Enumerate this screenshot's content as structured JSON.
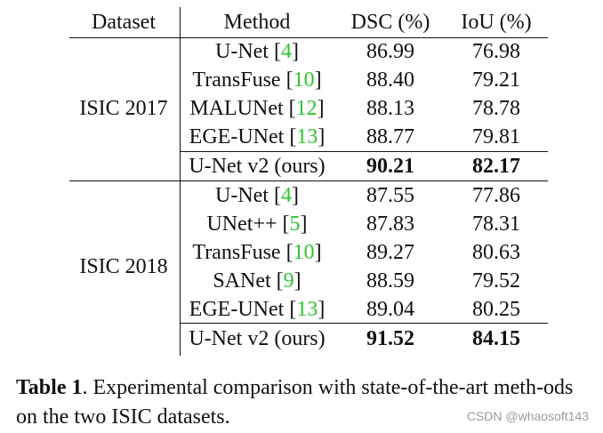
{
  "table": {
    "headers": {
      "dataset": "Dataset",
      "method": "Method",
      "dsc": "DSC (%)",
      "iou": "IoU (%)"
    },
    "groups": [
      {
        "dataset": "ISIC 2017",
        "rows": [
          {
            "method": "U-Net",
            "ref": "4",
            "dsc": "86.99",
            "iou": "76.98"
          },
          {
            "method": "TransFuse",
            "ref": "10",
            "dsc": "88.40",
            "iou": "79.21"
          },
          {
            "method": "MALUNet",
            "ref": "12",
            "dsc": "88.13",
            "iou": "78.78"
          },
          {
            "method": "EGE-UNet",
            "ref": "13",
            "dsc": "88.77",
            "iou": "79.81"
          }
        ],
        "ours": {
          "method": "U-Net v2 (ours)",
          "dsc": "90.21",
          "iou": "82.17"
        }
      },
      {
        "dataset": "ISIC 2018",
        "rows": [
          {
            "method": "U-Net",
            "ref": "4",
            "dsc": "87.55",
            "iou": "77.86"
          },
          {
            "method": "UNet++",
            "ref": "5",
            "dsc": "87.83",
            "iou": "78.31"
          },
          {
            "method": "TransFuse",
            "ref": "10",
            "dsc": "89.27",
            "iou": "80.63"
          },
          {
            "method": "SANet",
            "ref": "9",
            "dsc": "88.59",
            "iou": "79.52"
          },
          {
            "method": "EGE-UNet",
            "ref": "13",
            "dsc": "89.04",
            "iou": "80.25"
          }
        ],
        "ours": {
          "method": "U-Net v2 (ours)",
          "dsc": "91.52",
          "iou": "84.15"
        }
      }
    ]
  },
  "caption": {
    "label": "Table 1",
    "text": ". Experimental comparison with state-of-the-art meth-ods on the two ISIC datasets."
  },
  "watermark": "CSDN @whaosoft143"
}
